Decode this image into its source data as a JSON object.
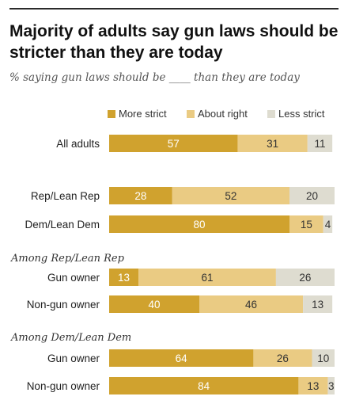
{
  "title": "Majority of adults say gun laws should be stricter than they are today",
  "subtitle": "% saying gun laws should be ____ than they are today",
  "chart_data": {
    "type": "bar",
    "orientation": "horizontal",
    "stacked": true,
    "legend_position": "top-right",
    "grid": false,
    "title": "Majority of adults say gun laws should be stricter than they are today",
    "subtitle": "% saying gun laws should be ____ than they are today",
    "categories": [
      "All adults",
      "Rep/Lean Rep",
      "Dem/Lean Dem",
      "Gun owner",
      "Non-gun owner",
      "Gun owner",
      "Non-gun owner"
    ],
    "groups": [
      {
        "label": "",
        "rows": [
          0
        ]
      },
      {
        "label": "",
        "rows": [
          1,
          2
        ]
      },
      {
        "label": "Among Rep/Lean Rep",
        "rows": [
          3,
          4
        ]
      },
      {
        "label": "Among Dem/Lean Dem",
        "rows": [
          5,
          6
        ]
      }
    ],
    "series": [
      {
        "name": "More strict",
        "color": "#d0a22e",
        "label_color": "#ffffff",
        "values": [
          57,
          28,
          80,
          13,
          40,
          64,
          84
        ]
      },
      {
        "name": "About right",
        "color": "#eacb83",
        "label_color": "#333333",
        "values": [
          31,
          52,
          15,
          61,
          46,
          26,
          13
        ]
      },
      {
        "name": "Less strict",
        "color": "#dedcd0",
        "label_color": "#333333",
        "values": [
          11,
          20,
          4,
          26,
          13,
          10,
          3
        ]
      }
    ],
    "xlim": [
      0,
      100
    ]
  }
}
